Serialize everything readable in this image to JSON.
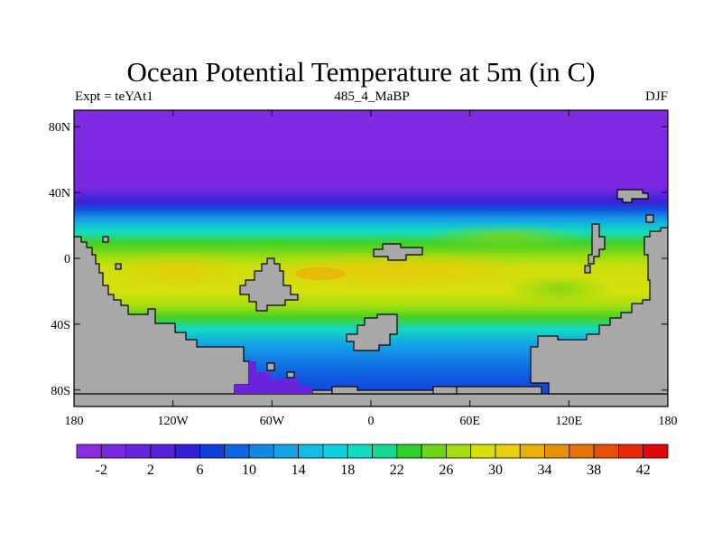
{
  "title": "Ocean Potential Temperature at 5m (in C)",
  "subtitle_left": "Expt = teYAt1",
  "subtitle_center": "485_4_MaBP",
  "subtitle_right": "DJF",
  "x_ticks": [
    {
      "value": -180,
      "label": "180"
    },
    {
      "value": -120,
      "label": "120W"
    },
    {
      "value": -60,
      "label": "60W"
    },
    {
      "value": 0,
      "label": "0"
    },
    {
      "value": 60,
      "label": "60E"
    },
    {
      "value": 120,
      "label": "120E"
    },
    {
      "value": 180,
      "label": "180"
    }
  ],
  "y_ticks": [
    {
      "value": 80,
      "label": "80N"
    },
    {
      "value": 40,
      "label": "40N"
    },
    {
      "value": 0,
      "label": "0"
    },
    {
      "value": -40,
      "label": "40S"
    },
    {
      "value": -80,
      "label": "80S"
    }
  ],
  "lon_range": [
    -180,
    180
  ],
  "lat_range": [
    -90,
    90
  ],
  "colorbar": {
    "colors": [
      "#8b2be2",
      "#7a28e0",
      "#6a23dc",
      "#5a1fd8",
      "#3020d8",
      "#1040dc",
      "#0f66e0",
      "#1188e3",
      "#14a3e6",
      "#12bce6",
      "#0fd0de",
      "#11dcbf",
      "#14d890",
      "#2ed02a",
      "#6ed418",
      "#a6dd0f",
      "#d8e00b",
      "#e8d00a",
      "#e8b009",
      "#e89008",
      "#e87008",
      "#e85008",
      "#e82808",
      "#e00808"
    ],
    "labels": [
      "-2",
      "2",
      "6",
      "10",
      "14",
      "18",
      "22",
      "26",
      "30",
      "34",
      "38",
      "42"
    ]
  },
  "land_color": "#a8a8a8"
}
